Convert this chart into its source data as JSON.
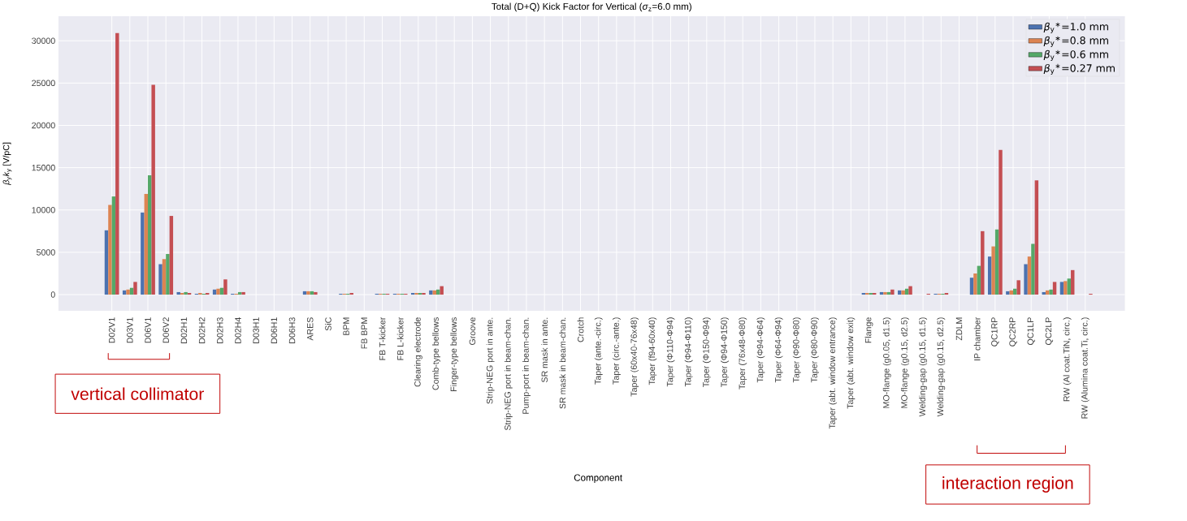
{
  "chart_data": {
    "type": "bar",
    "title": "Total (D+Q) Kick Factor for Vertical (*σ*$_{z}$=6.0 mm)",
    "xlabel": "Component",
    "ylabel": "*β*$_{y}$*k*$_{y}$ [V/pC]",
    "categories": [
      "D02V1",
      "D03V1",
      "D06V1",
      "D06V2",
      "D02H1",
      "D02H2",
      "D02H3",
      "D02H4",
      "D03H1",
      "D06H1",
      "D06H3",
      "ARES",
      "SiC",
      "BPM",
      "FB BPM",
      "FB T-kicker",
      "FB L-kicker",
      "Clearing electrode",
      "Comb-type bellows",
      "Finger-type bellows",
      "Groove",
      "Strip-NEG port in ante.",
      "Strip-NEG port in beam-chan.",
      "Pump-port in beam-chan.",
      "SR mask in ante.",
      "SR mask in beam-chan.",
      "Crotch",
      "Taper (ante.-circ.)",
      "Taper (circ.-ante.)",
      "Taper (60x40-76x48)",
      "Taper (f94-60x40)",
      "Taper (Φ110-Φ94)",
      "Taper (Φ94-Φ110)",
      "Taper (Φ150-Φ94)",
      "Taper (Φ94-Φ150)",
      "Taper (76x48-Φ80)",
      "Taper (Φ94-Φ64)",
      "Taper (Φ64-Φ94)",
      "Taper (Φ90-Φ80)",
      "Taper (Φ80-Φ90)",
      "Taper (abt. window entrance)",
      "Taper (abt. window exit)",
      "Flange",
      "MO-flange (g0.05, d1.5)",
      "MO-flange (g0.15, d2.5)",
      "Welding-gap (g0.15, d1.5)",
      "Welding-gap (g0.15, d2.5)",
      "ZDLM",
      "IP chamber",
      "QC1RP",
      "QC2RP",
      "QC1LP",
      "QC2LP",
      "RW (Al coat.TiN, circ.)",
      "RW (Alumina coat.Ti, circ.)"
    ],
    "series": [
      {
        "name": "*β*$_{y}$$^{∗}$=1.0 mm",
        "color": "#4c72b0",
        "values": [
          7600,
          500,
          9700,
          3600,
          300,
          100,
          600,
          100,
          0,
          0,
          0,
          400,
          0,
          100,
          0,
          100,
          100,
          200,
          500,
          0,
          0,
          0,
          0,
          0,
          0,
          0,
          0,
          0,
          0,
          0,
          0,
          0,
          0,
          0,
          0,
          0,
          0,
          0,
          0,
          0,
          0,
          0,
          200,
          300,
          500,
          0,
          100,
          0,
          2000,
          4500,
          400,
          3600,
          300,
          1500,
          0
        ]
      },
      {
        "name": "*β*$_{y}$$^{∗}$=0.8 mm",
        "color": "#dd8452",
        "values": [
          10600,
          600,
          11900,
          4200,
          200,
          200,
          700,
          100,
          0,
          0,
          0,
          400,
          0,
          100,
          0,
          100,
          100,
          200,
          500,
          0,
          0,
          0,
          0,
          0,
          0,
          0,
          0,
          0,
          0,
          0,
          0,
          0,
          0,
          0,
          0,
          0,
          0,
          0,
          0,
          0,
          0,
          0,
          200,
          300,
          500,
          0,
          100,
          0,
          2500,
          5700,
          500,
          4500,
          500,
          1600,
          0
        ]
      },
      {
        "name": "*β*$_{y}$$^{∗}$=0.6 mm",
        "color": "#55a868",
        "values": [
          11600,
          800,
          14100,
          4800,
          300,
          100,
          800,
          300,
          0,
          0,
          0,
          400,
          0,
          100,
          0,
          100,
          100,
          200,
          600,
          0,
          0,
          0,
          0,
          0,
          0,
          0,
          0,
          0,
          0,
          0,
          0,
          0,
          0,
          0,
          0,
          0,
          0,
          0,
          0,
          0,
          0,
          0,
          200,
          300,
          700,
          0,
          100,
          0,
          3400,
          7700,
          700,
          6000,
          600,
          1900,
          0
        ]
      },
      {
        "name": "*β*$_{y}$$^{∗}$=0.27 mm",
        "color": "#c44e52",
        "values": [
          30900,
          1500,
          24800,
          9300,
          200,
          200,
          1800,
          300,
          0,
          0,
          0,
          300,
          0,
          200,
          0,
          100,
          100,
          200,
          1000,
          0,
          0,
          0,
          0,
          0,
          0,
          0,
          0,
          0,
          0,
          0,
          0,
          0,
          0,
          0,
          0,
          0,
          0,
          0,
          0,
          0,
          0,
          0,
          200,
          600,
          1000,
          100,
          200,
          0,
          7500,
          17100,
          1700,
          13500,
          1500,
          2900,
          100
        ]
      }
    ],
    "ylim": [
      -1900,
      32900
    ],
    "yticks": [
      0,
      5000,
      10000,
      15000,
      20000,
      25000,
      30000
    ],
    "grid": true,
    "legend": "top right",
    "annotations": [
      "vertical collimator",
      "interaction region"
    ]
  }
}
